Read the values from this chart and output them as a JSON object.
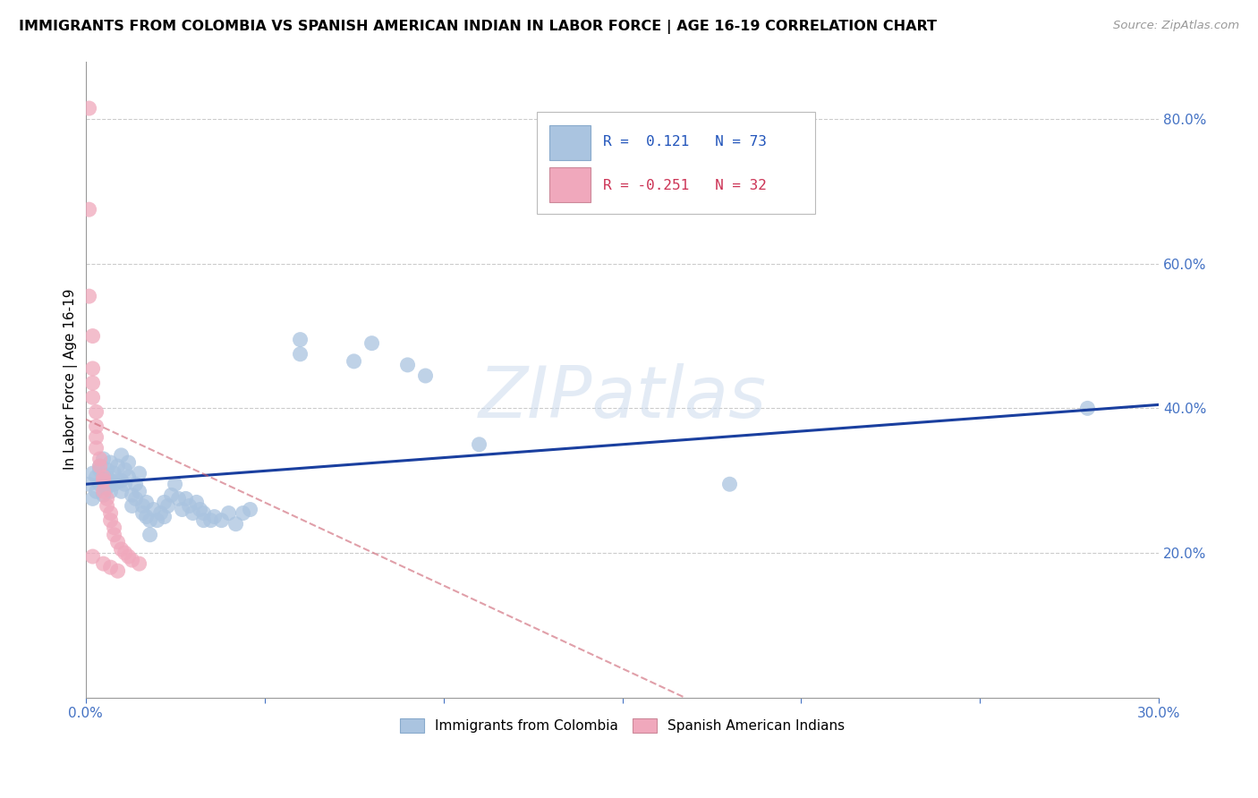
{
  "title": "IMMIGRANTS FROM COLOMBIA VS SPANISH AMERICAN INDIAN IN LABOR FORCE | AGE 16-19 CORRELATION CHART",
  "source": "Source: ZipAtlas.com",
  "ylabel": "In Labor Force | Age 16-19",
  "legend1_label": "Immigrants from Colombia",
  "legend2_label": "Spanish American Indians",
  "R1": 0.121,
  "N1": 73,
  "R2": -0.251,
  "N2": 32,
  "color_blue": "#aac4e0",
  "color_pink": "#f0a8bc",
  "line_blue": "#1a3f9f",
  "line_pink": "#cc6070",
  "watermark": "ZIPatlas",
  "xlim": [
    0.0,
    0.3
  ],
  "ylim": [
    0.0,
    0.88
  ],
  "yticks": [
    0.2,
    0.4,
    0.6,
    0.8
  ],
  "ytick_labels": [
    "20.0%",
    "40.0%",
    "60.0%",
    "80.0%"
  ],
  "blue_scatter": [
    [
      0.001,
      0.295
    ],
    [
      0.002,
      0.31
    ],
    [
      0.002,
      0.275
    ],
    [
      0.003,
      0.305
    ],
    [
      0.003,
      0.285
    ],
    [
      0.004,
      0.315
    ],
    [
      0.004,
      0.295
    ],
    [
      0.004,
      0.32
    ],
    [
      0.005,
      0.33
    ],
    [
      0.005,
      0.295
    ],
    [
      0.005,
      0.28
    ],
    [
      0.006,
      0.305
    ],
    [
      0.006,
      0.315
    ],
    [
      0.006,
      0.29
    ],
    [
      0.007,
      0.325
    ],
    [
      0.007,
      0.3
    ],
    [
      0.007,
      0.285
    ],
    [
      0.008,
      0.31
    ],
    [
      0.008,
      0.295
    ],
    [
      0.009,
      0.32
    ],
    [
      0.009,
      0.3
    ],
    [
      0.01,
      0.335
    ],
    [
      0.01,
      0.3
    ],
    [
      0.01,
      0.285
    ],
    [
      0.011,
      0.315
    ],
    [
      0.011,
      0.295
    ],
    [
      0.012,
      0.325
    ],
    [
      0.012,
      0.305
    ],
    [
      0.013,
      0.28
    ],
    [
      0.013,
      0.265
    ],
    [
      0.014,
      0.295
    ],
    [
      0.014,
      0.275
    ],
    [
      0.015,
      0.31
    ],
    [
      0.015,
      0.285
    ],
    [
      0.016,
      0.265
    ],
    [
      0.016,
      0.255
    ],
    [
      0.017,
      0.27
    ],
    [
      0.017,
      0.25
    ],
    [
      0.018,
      0.245
    ],
    [
      0.018,
      0.225
    ],
    [
      0.019,
      0.26
    ],
    [
      0.02,
      0.245
    ],
    [
      0.021,
      0.255
    ],
    [
      0.022,
      0.27
    ],
    [
      0.022,
      0.25
    ],
    [
      0.023,
      0.265
    ],
    [
      0.024,
      0.28
    ],
    [
      0.025,
      0.295
    ],
    [
      0.026,
      0.275
    ],
    [
      0.027,
      0.26
    ],
    [
      0.028,
      0.275
    ],
    [
      0.029,
      0.265
    ],
    [
      0.03,
      0.255
    ],
    [
      0.031,
      0.27
    ],
    [
      0.032,
      0.26
    ],
    [
      0.033,
      0.245
    ],
    [
      0.033,
      0.255
    ],
    [
      0.035,
      0.245
    ],
    [
      0.036,
      0.25
    ],
    [
      0.038,
      0.245
    ],
    [
      0.04,
      0.255
    ],
    [
      0.042,
      0.24
    ],
    [
      0.044,
      0.255
    ],
    [
      0.046,
      0.26
    ],
    [
      0.06,
      0.495
    ],
    [
      0.06,
      0.475
    ],
    [
      0.075,
      0.465
    ],
    [
      0.08,
      0.49
    ],
    [
      0.09,
      0.46
    ],
    [
      0.095,
      0.445
    ],
    [
      0.11,
      0.35
    ],
    [
      0.18,
      0.295
    ],
    [
      0.28,
      0.4
    ]
  ],
  "pink_scatter": [
    [
      0.001,
      0.815
    ],
    [
      0.001,
      0.675
    ],
    [
      0.001,
      0.555
    ],
    [
      0.002,
      0.5
    ],
    [
      0.002,
      0.455
    ],
    [
      0.002,
      0.435
    ],
    [
      0.002,
      0.415
    ],
    [
      0.003,
      0.395
    ],
    [
      0.003,
      0.375
    ],
    [
      0.003,
      0.36
    ],
    [
      0.003,
      0.345
    ],
    [
      0.004,
      0.33
    ],
    [
      0.004,
      0.32
    ],
    [
      0.005,
      0.305
    ],
    [
      0.005,
      0.3
    ],
    [
      0.005,
      0.285
    ],
    [
      0.006,
      0.275
    ],
    [
      0.006,
      0.265
    ],
    [
      0.007,
      0.255
    ],
    [
      0.007,
      0.245
    ],
    [
      0.008,
      0.235
    ],
    [
      0.008,
      0.225
    ],
    [
      0.009,
      0.215
    ],
    [
      0.01,
      0.205
    ],
    [
      0.011,
      0.2
    ],
    [
      0.012,
      0.195
    ],
    [
      0.013,
      0.19
    ],
    [
      0.015,
      0.185
    ],
    [
      0.002,
      0.195
    ],
    [
      0.005,
      0.185
    ],
    [
      0.007,
      0.18
    ],
    [
      0.009,
      0.175
    ]
  ]
}
